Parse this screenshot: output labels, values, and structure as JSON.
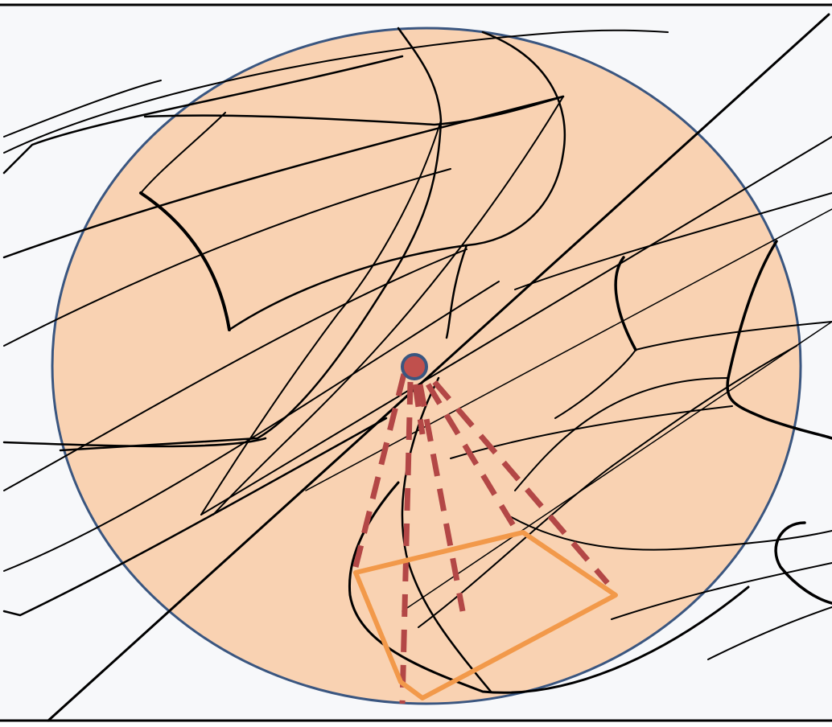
{
  "figure": {
    "kind": "line-pattern-with-highlighted-region",
    "background_color": "#f7f8fa",
    "region_fill_color": "#f9d2b2",
    "region_outline_color": "#3a5680",
    "ink_color": "#000000",
    "center_point_color": "#c0504d",
    "ray_color": "#b34746",
    "polygon_color": "#f2994a",
    "ray_count": 6,
    "polygon_vertex_count": 4,
    "text_labels": []
  }
}
